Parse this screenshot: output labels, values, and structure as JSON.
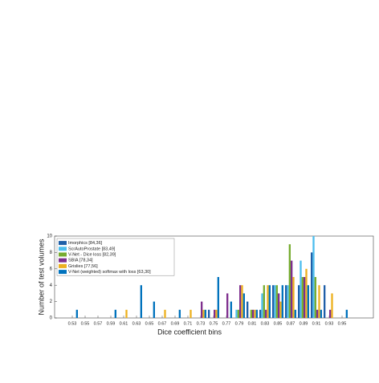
{
  "chart_data": {
    "type": "bar",
    "xlabel": "Dice coefficient bins",
    "ylabel": "Number of test volumes",
    "categories": [
      "0.53",
      "0.55",
      "0.57",
      "0.59",
      "0.61",
      "0.63",
      "0.65",
      "0.67",
      "0.69",
      "0.71",
      "0.73",
      "0.75",
      "0.77",
      "0.79",
      "0.81",
      "0.83",
      "0.85",
      "0.87",
      "0.89",
      "0.91",
      "0.93",
      "0.95"
    ],
    "series": [
      {
        "name": "Imorphics [84,36]",
        "color": "#1f5fa8",
        "values": [
          0,
          0,
          0,
          0,
          0,
          0,
          0,
          0,
          0,
          0,
          0,
          1,
          0,
          0,
          2,
          1,
          4,
          4,
          4,
          8,
          4,
          0
        ]
      },
      {
        "name": "ScrAutoProstate [83,49]",
        "color": "#4dbeee",
        "values": [
          0,
          0,
          0,
          0,
          0,
          0,
          0,
          0,
          0,
          0,
          0,
          0,
          0,
          1,
          0,
          3,
          4,
          4,
          7,
          10,
          0,
          0
        ]
      },
      {
        "name": "V-Net - Dice loss [82,39]",
        "color": "#77ac30",
        "values": [
          0,
          0,
          0,
          0,
          0,
          0,
          0,
          0,
          0,
          0,
          0,
          0,
          0,
          1,
          1,
          4,
          4,
          9,
          5,
          5,
          0,
          0
        ]
      },
      {
        "name": "SBIA [78,34]",
        "color": "#7e2f8e",
        "values": [
          0,
          0,
          0,
          0,
          0,
          0,
          0,
          0,
          0,
          0,
          2,
          1,
          3,
          4,
          1,
          1,
          3,
          7,
          5,
          1,
          1,
          0
        ]
      },
      {
        "name": "Grislies [77,56]",
        "color": "#edb120",
        "values": [
          0,
          0,
          0,
          0,
          1,
          0,
          0,
          1,
          0,
          1,
          1,
          1,
          0,
          4,
          1,
          4,
          2,
          5,
          6,
          4,
          3,
          0
        ]
      },
      {
        "name": "V-Net (weighted) softmax with loss [63,30]",
        "color": "#0072bd",
        "values": [
          1,
          0,
          0,
          1,
          0,
          4,
          2,
          0,
          1,
          0,
          1,
          5,
          2,
          3,
          1,
          4,
          4,
          1,
          4,
          1,
          0,
          1
        ]
      }
    ],
    "ylim": [
      0,
      10
    ],
    "yticks": [
      0,
      2,
      4,
      6,
      8,
      10
    ],
    "legend": "upper left"
  }
}
